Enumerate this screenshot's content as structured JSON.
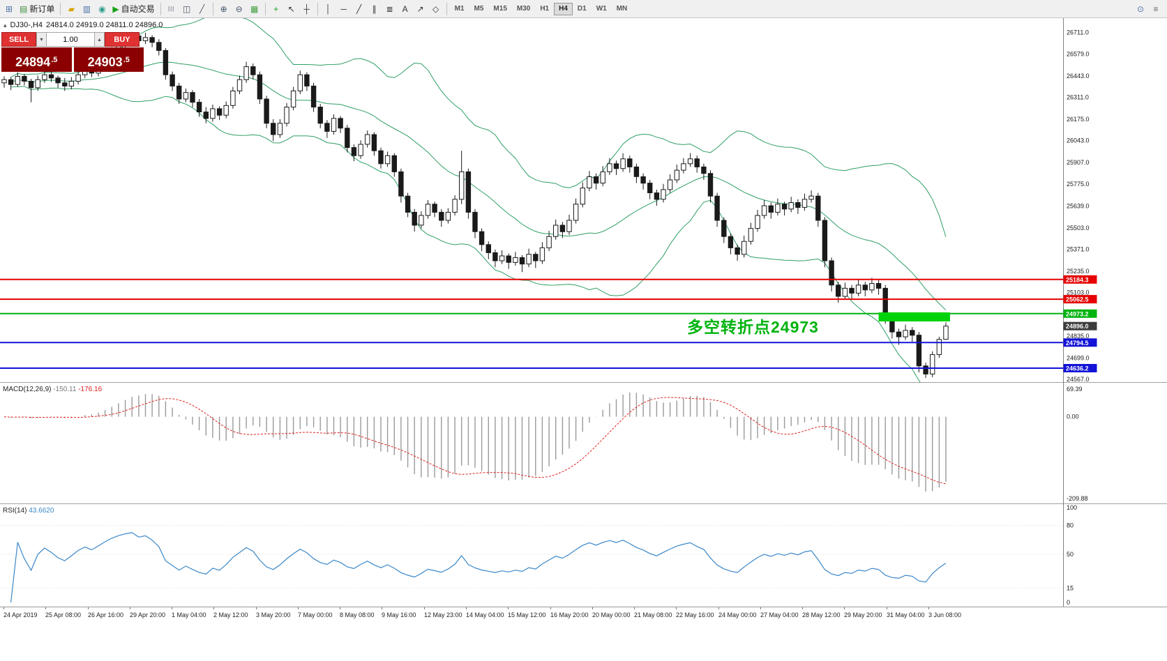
{
  "toolbar": {
    "new_order_label": "新订单",
    "autotrade_label": "自动交易",
    "active_timeframe": "H4",
    "timeframes": [
      "M1",
      "M5",
      "M15",
      "M30",
      "H1",
      "H4",
      "D1",
      "W1",
      "MN"
    ],
    "items": [
      {
        "name": "new-chart-button",
        "glyph": "⊞",
        "color": "#4a6fa8"
      },
      {
        "name": "new-order-button",
        "glyph": "▤",
        "color": "#3f8f3f",
        "label": "新订单"
      },
      {
        "sep": true
      },
      {
        "name": "profiles-button",
        "glyph": "▰",
        "color": "#d8a400"
      },
      {
        "name": "market-watch-button",
        "glyph": "▥",
        "color": "#4a6fa8"
      },
      {
        "name": "data-window-button",
        "glyph": "◉",
        "color": "#2f9e8f"
      },
      {
        "name": "autotrade-button",
        "glyph": "▶",
        "color": "#18a018",
        "label": "自动交易"
      },
      {
        "sep": true
      },
      {
        "name": "bar-chart-button",
        "glyph": "|||",
        "color": "#505868",
        "small": true
      },
      {
        "name": "candlestick-chart-button",
        "glyph": "◫",
        "color": "#505868"
      },
      {
        "name": "line-chart-button",
        "glyph": "╱",
        "color": "#505868"
      },
      {
        "sep": true
      },
      {
        "name": "zoom-in-button",
        "glyph": "⊕",
        "color": "#40506a"
      },
      {
        "name": "zoom-out-button",
        "glyph": "⊖",
        "color": "#40506a"
      },
      {
        "name": "tile-windows-button",
        "glyph": "▦",
        "color": "#3f9e3f"
      },
      {
        "sep": true
      },
      {
        "name": "indicators-button",
        "glyph": "+",
        "color": "#18a018"
      },
      {
        "name": "cursor-button",
        "glyph": "↖",
        "color": "#333"
      },
      {
        "name": "crosshair-button",
        "glyph": "┼",
        "color": "#333"
      },
      {
        "sep": true
      },
      {
        "name": "vertical-line-button",
        "glyph": "│",
        "color": "#333"
      },
      {
        "name": "horizontal-line-button",
        "glyph": "─",
        "color": "#333"
      },
      {
        "name": "trendline-button",
        "glyph": "╱",
        "color": "#333"
      },
      {
        "name": "channel-button",
        "glyph": "∥",
        "color": "#333"
      },
      {
        "name": "fibonacci-button",
        "glyph": "≣",
        "color": "#333"
      },
      {
        "name": "text-button",
        "glyph": "A",
        "color": "#333"
      },
      {
        "name": "arrows-button",
        "glyph": "↗",
        "color": "#333"
      },
      {
        "name": "shapes-button",
        "glyph": "◇",
        "color": "#333"
      },
      {
        "sep": true
      }
    ],
    "right_items": [
      {
        "name": "search-button",
        "glyph": "⊙",
        "color": "#4a6fa8"
      },
      {
        "name": "menu-button",
        "glyph": "≡",
        "color": "#666"
      }
    ]
  },
  "icons": {
    "expand_arrow": "▴",
    "caret_up": "▴",
    "caret_down": "▾"
  },
  "chart": {
    "symbol_line": "DJ30-,H4",
    "ohlc_line": "24814.0 24919.0 24811.0 24896.0",
    "trade_panel": {
      "sell_label": "SELL",
      "buy_label": "BUY",
      "volume": "1.00",
      "sell_price": "24894.5",
      "buy_price": "24903.5"
    },
    "annotation": {
      "text": "多空转折点24973",
      "color": "#00b30e"
    }
  },
  "chart_data": {
    "type": "candlestick",
    "symbol": "DJ30-",
    "timeframe": "H4",
    "current_bar": {
      "open": 24814.0,
      "high": 24919.0,
      "low": 24811.0,
      "close": 24896.0
    },
    "ylim": [
      24550,
      26800
    ],
    "price_axis_labels": [
      "26711.0",
      "26579.0",
      "26443.0",
      "26311.0",
      "26175.0",
      "26043.0",
      "25907.0",
      "25775.0",
      "25639.0",
      "25503.0",
      "25371.0",
      "25235.0",
      "25103.0",
      "24835.0",
      "24699.0",
      "24567.0"
    ],
    "overlays": {
      "bollinger": {
        "period": 20,
        "deviation": 2,
        "color": "#2e9e64"
      }
    },
    "hlines": [
      {
        "price": 25184.3,
        "label": "25184.3",
        "color": "#e60000"
      },
      {
        "price": 25062.5,
        "label": "25062.5",
        "color": "#e60000"
      },
      {
        "price": 24973.2,
        "label": "24973.2",
        "color": "#00b30e"
      },
      {
        "price": 24794.5,
        "label": "24794.5",
        "color": "#1212d8"
      },
      {
        "price": 24636.2,
        "label": "24636.2",
        "color": "#1212d8"
      }
    ],
    "current_price": {
      "price": 24896.0,
      "label": "24896.0",
      "color": "#3c3c3c"
    },
    "rectangle": {
      "from_index": 130,
      "price_top": 24981,
      "price_bottom": 24925,
      "color": "#00d20a"
    },
    "candles": [
      [
        26400,
        26440,
        26370,
        26420
      ],
      [
        26420,
        26435,
        26355,
        26390
      ],
      [
        26390,
        26465,
        26375,
        26440
      ],
      [
        26440,
        26455,
        26385,
        26410
      ],
      [
        26410,
        26425,
        26280,
        26370
      ],
      [
        26370,
        26445,
        26350,
        26420
      ],
      [
        26420,
        26475,
        26400,
        26450
      ],
      [
        26450,
        26480,
        26405,
        26430
      ],
      [
        26430,
        26445,
        26370,
        26400
      ],
      [
        26400,
        26430,
        26350,
        26380
      ],
      [
        26380,
        26435,
        26360,
        26410
      ],
      [
        26410,
        26470,
        26390,
        26450
      ],
      [
        26450,
        26505,
        26430,
        26480
      ],
      [
        26480,
        26500,
        26435,
        26460
      ],
      [
        26460,
        26525,
        26440,
        26500
      ],
      [
        26500,
        26575,
        26480,
        26550
      ],
      [
        26550,
        26620,
        26530,
        26600
      ],
      [
        26600,
        26660,
        26575,
        26640
      ],
      [
        26640,
        26700,
        26620,
        26670
      ],
      [
        26670,
        26715,
        26645,
        26690
      ],
      [
        26690,
        26705,
        26630,
        26660
      ],
      [
        26660,
        26710,
        26640,
        26680
      ],
      [
        26680,
        26695,
        26620,
        26650
      ],
      [
        26650,
        26670,
        26570,
        26600
      ],
      [
        26600,
        26615,
        26420,
        26450
      ],
      [
        26450,
        26470,
        26350,
        26380
      ],
      [
        26380,
        26400,
        26270,
        26300
      ],
      [
        26300,
        26365,
        26280,
        26340
      ],
      [
        26340,
        26355,
        26250,
        26280
      ],
      [
        26280,
        26300,
        26190,
        26220
      ],
      [
        26220,
        26250,
        26150,
        26180
      ],
      [
        26180,
        26265,
        26160,
        26240
      ],
      [
        26240,
        26255,
        26170,
        26200
      ],
      [
        26200,
        26285,
        26180,
        26260
      ],
      [
        26260,
        26375,
        26240,
        26350
      ],
      [
        26350,
        26445,
        26330,
        26420
      ],
      [
        26420,
        26530,
        26400,
        26500
      ],
      [
        26500,
        26520,
        26420,
        26450
      ],
      [
        26450,
        26470,
        26270,
        26300
      ],
      [
        26300,
        26320,
        26120,
        26150
      ],
      [
        26150,
        26175,
        26040,
        26080
      ],
      [
        26080,
        26175,
        26060,
        26150
      ],
      [
        26150,
        26275,
        26130,
        26250
      ],
      [
        26250,
        26375,
        26230,
        26350
      ],
      [
        26350,
        26475,
        26330,
        26450
      ],
      [
        26450,
        26465,
        26350,
        26380
      ],
      [
        26380,
        26400,
        26220,
        26250
      ],
      [
        26250,
        26270,
        26120,
        26150
      ],
      [
        26150,
        26170,
        26060,
        26100
      ],
      [
        26100,
        26205,
        26080,
        26180
      ],
      [
        26180,
        26195,
        26090,
        26120
      ],
      [
        26120,
        26140,
        25970,
        26000
      ],
      [
        26000,
        26020,
        25915,
        25950
      ],
      [
        25950,
        26045,
        25930,
        26020
      ],
      [
        26020,
        26105,
        26000,
        26080
      ],
      [
        26080,
        26095,
        25950,
        25980
      ],
      [
        25980,
        26000,
        25870,
        25900
      ],
      [
        25900,
        25975,
        25880,
        25950
      ],
      [
        25950,
        25965,
        25820,
        25850
      ],
      [
        25850,
        25870,
        25660,
        25700
      ],
      [
        25700,
        25720,
        25570,
        25600
      ],
      [
        25600,
        25620,
        25480,
        25520
      ],
      [
        25520,
        25605,
        25500,
        25580
      ],
      [
        25580,
        25675,
        25560,
        25650
      ],
      [
        25650,
        25665,
        25570,
        25600
      ],
      [
        25600,
        25620,
        25510,
        25550
      ],
      [
        25550,
        25625,
        25530,
        25600
      ],
      [
        25600,
        25705,
        25580,
        25680
      ],
      [
        25680,
        25980,
        25650,
        25850
      ],
      [
        25850,
        25870,
        25560,
        25600
      ],
      [
        25600,
        25620,
        25440,
        25480
      ],
      [
        25480,
        25500,
        25360,
        25400
      ],
      [
        25400,
        25420,
        25310,
        25350
      ],
      [
        25350,
        25370,
        25260,
        25300
      ],
      [
        25300,
        25365,
        25280,
        25330
      ],
      [
        25330,
        25345,
        25250,
        25290
      ],
      [
        25290,
        25355,
        25270,
        25320
      ],
      [
        25320,
        25335,
        25230,
        25280
      ],
      [
        25280,
        25375,
        25260,
        25340
      ],
      [
        25340,
        25355,
        25255,
        25300
      ],
      [
        25300,
        25415,
        25280,
        25380
      ],
      [
        25380,
        25485,
        25360,
        25450
      ],
      [
        25450,
        25555,
        25430,
        25520
      ],
      [
        25520,
        25540,
        25440,
        25480
      ],
      [
        25480,
        25585,
        25460,
        25550
      ],
      [
        25550,
        25685,
        25530,
        25650
      ],
      [
        25650,
        25785,
        25630,
        25750
      ],
      [
        25750,
        25855,
        25730,
        25820
      ],
      [
        25820,
        25840,
        25740,
        25780
      ],
      [
        25780,
        25885,
        25760,
        25850
      ],
      [
        25850,
        25935,
        25830,
        25900
      ],
      [
        25900,
        25920,
        25830,
        25870
      ],
      [
        25870,
        25965,
        25850,
        25930
      ],
      [
        25930,
        25950,
        25845,
        25880
      ],
      [
        25880,
        25900,
        25780,
        25820
      ],
      [
        25820,
        25840,
        25740,
        25780
      ],
      [
        25780,
        25800,
        25680,
        25720
      ],
      [
        25720,
        25740,
        25640,
        25680
      ],
      [
        25680,
        25775,
        25660,
        25740
      ],
      [
        25740,
        25835,
        25720,
        25800
      ],
      [
        25800,
        25895,
        25780,
        25860
      ],
      [
        25860,
        25935,
        25840,
        25900
      ],
      [
        25900,
        25965,
        25880,
        25930
      ],
      [
        25930,
        25950,
        25845,
        25880
      ],
      [
        25880,
        25900,
        25800,
        25840
      ],
      [
        25840,
        25860,
        25660,
        25700
      ],
      [
        25700,
        25720,
        25510,
        25550
      ],
      [
        25550,
        25570,
        25410,
        25450
      ],
      [
        25450,
        25470,
        25340,
        25380
      ],
      [
        25380,
        25400,
        25300,
        25340
      ],
      [
        25340,
        25455,
        25320,
        25420
      ],
      [
        25420,
        25535,
        25400,
        25500
      ],
      [
        25500,
        25615,
        25480,
        25580
      ],
      [
        25580,
        25675,
        25560,
        25640
      ],
      [
        25640,
        25660,
        25560,
        25600
      ],
      [
        25600,
        25685,
        25580,
        25650
      ],
      [
        25650,
        25665,
        25580,
        25620
      ],
      [
        25620,
        25695,
        25600,
        25660
      ],
      [
        25660,
        25680,
        25590,
        25630
      ],
      [
        25630,
        25715,
        25610,
        25680
      ],
      [
        25680,
        25735,
        25660,
        25700
      ],
      [
        25700,
        25720,
        25510,
        25550
      ],
      [
        25550,
        25570,
        25260,
        25300
      ],
      [
        25300,
        25320,
        25110,
        25150
      ],
      [
        25150,
        25170,
        25040,
        25080
      ],
      [
        25080,
        25165,
        25060,
        25130
      ],
      [
        25130,
        25150,
        25060,
        25100
      ],
      [
        25100,
        25185,
        25080,
        25150
      ],
      [
        25150,
        25170,
        25080,
        25120
      ],
      [
        25120,
        25195,
        25100,
        25160
      ],
      [
        25160,
        25180,
        25090,
        25130
      ],
      [
        25130,
        25150,
        24910,
        24950
      ],
      [
        24950,
        24970,
        24820,
        24860
      ],
      [
        24860,
        24880,
        24780,
        24830
      ],
      [
        24830,
        24905,
        24810,
        24870
      ],
      [
        24870,
        24890,
        24800,
        24840
      ],
      [
        24840,
        24860,
        24610,
        24650
      ],
      [
        24650,
        24670,
        24575,
        24600
      ],
      [
        24600,
        24740,
        24580,
        24720
      ],
      [
        24720,
        24830,
        24700,
        24814
      ],
      [
        24814,
        24919,
        24811,
        24896
      ]
    ],
    "indicators": [
      {
        "name": "MACD",
        "label": "MACD(12,26,9)",
        "params": [
          12,
          26,
          9
        ],
        "values": [
          "-150.11",
          "-176.16"
        ],
        "scale_labels": [
          "69.39",
          "0.00",
          "-209.88"
        ],
        "histogram_color": "#9a9a9a",
        "signal_color": "#e02020"
      },
      {
        "name": "RSI",
        "label": "RSI(14)",
        "period": 14,
        "value": "43.6620",
        "scale_labels": [
          "100",
          "80",
          "50",
          "15",
          "0"
        ],
        "levels": [
          80,
          50,
          15
        ],
        "line_color": "#3a87c8"
      }
    ],
    "time_axis": [
      "24 Apr 2019",
      "25 Apr 08:00",
      "26 Apr 16:00",
      "29 Apr 20:00",
      "1 May 04:00",
      "2 May 12:00",
      "3 May 20:00",
      "7 May 00:00",
      "8 May 08:00",
      "9 May 16:00",
      "12 May 23:00",
      "14 May 04:00",
      "15 May 12:00",
      "16 May 20:00",
      "20 May 00:00",
      "21 May 08:00",
      "22 May 16:00",
      "24 May 00:00",
      "27 May 04:00",
      "28 May 12:00",
      "29 May 20:00",
      "31 May 04:00",
      "3 Jun 08:00"
    ]
  }
}
